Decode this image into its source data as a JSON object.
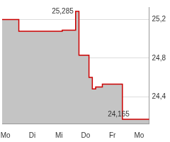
{
  "chart_data": {
    "type": "line",
    "line_style": "stepped",
    "categories": [
      null,
      "Mo",
      null,
      null,
      null,
      null,
      null,
      null,
      null,
      "Di",
      null,
      null,
      null,
      null,
      null,
      null,
      null,
      "Mi",
      null,
      null,
      null,
      null,
      null,
      null,
      null,
      "Do",
      null,
      null,
      null,
      null,
      null,
      null,
      null,
      "Fr",
      null,
      null,
      null,
      null,
      null,
      null,
      null,
      "Mo",
      null,
      null,
      null
    ],
    "values": [
      25.2,
      25.2,
      25.2,
      25.2,
      25.2,
      25.08,
      25.08,
      25.08,
      25.08,
      25.08,
      25.08,
      25.08,
      25.08,
      25.08,
      25.08,
      25.08,
      25.08,
      25.08,
      25.09,
      25.09,
      25.09,
      25.09,
      25.285,
      24.83,
      24.83,
      24.83,
      24.6,
      24.48,
      24.5,
      24.5,
      24.53,
      24.53,
      24.53,
      24.53,
      24.53,
      24.53,
      24.165,
      24.165,
      24.165,
      24.165,
      24.165,
      24.165,
      24.165,
      24.165,
      24.165
    ],
    "color": "#cc0000",
    "ylim": [
      24.12,
      25.33
    ],
    "yticks": [
      {
        "value": 24.4,
        "label": "24,4"
      },
      {
        "value": 24.8,
        "label": "24,8"
      },
      {
        "value": 25.2,
        "label": "25,2"
      }
    ],
    "annotations": [
      {
        "label": "25,285",
        "value": 25.285
      },
      {
        "label": "24,165",
        "value": 24.165
      }
    ],
    "grid": true
  }
}
